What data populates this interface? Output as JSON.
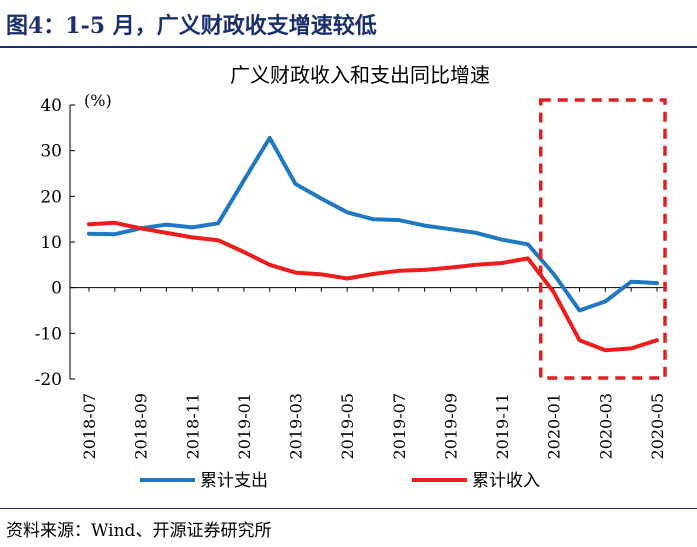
{
  "figure": {
    "title": "图4：1-5 月，广义财政收支增速较低",
    "source": "资料来源：Wind、开源证券研究所"
  },
  "chart_data": {
    "type": "line",
    "title": "广义财政收入和支出同比增速",
    "unit_label": "(%)",
    "x": [
      "2018-07",
      "2018-08",
      "2018-09",
      "2018-10",
      "2018-11",
      "2018-12",
      "2019-01",
      "2019-02",
      "2019-03",
      "2019-04",
      "2019-05",
      "2019-06",
      "2019-07",
      "2019-08",
      "2019-09",
      "2019-10",
      "2019-11",
      "2019-12",
      "2020-01",
      "2020-02",
      "2020-03",
      "2020-04",
      "2020-05"
    ],
    "x_tick_labels": [
      "2018-07",
      "2018-09",
      "2018-11",
      "2019-01",
      "2019-03",
      "2019-05",
      "2019-07",
      "2019-09",
      "2019-11",
      "2020-01",
      "2020-03",
      "2020-05"
    ],
    "ylim": [
      -20,
      40
    ],
    "yticks": [
      -20,
      -10,
      0,
      10,
      20,
      30,
      40
    ],
    "series": [
      {
        "name": "累计支出",
        "color": "#1f78c1",
        "values": [
          11.8,
          11.7,
          13.0,
          13.8,
          13.2,
          14.1,
          23.5,
          32.8,
          22.7,
          19.5,
          16.5,
          15.0,
          14.8,
          13.6,
          12.8,
          12.0,
          10.5,
          9.5,
          3.0,
          -5.0,
          -3.0,
          1.3,
          1.0
        ]
      },
      {
        "name": "累计收入",
        "color": "#ee1c1c",
        "values": [
          13.9,
          14.2,
          13.0,
          12.0,
          11.0,
          10.4,
          7.8,
          5.0,
          3.3,
          2.9,
          2.0,
          3.0,
          3.7,
          3.9,
          4.4,
          5.0,
          5.4,
          6.4,
          -1.0,
          -11.5,
          -13.7,
          -13.3,
          -11.5
        ]
      }
    ],
    "highlight_color": "#e02020",
    "legend_position": "bottom"
  }
}
